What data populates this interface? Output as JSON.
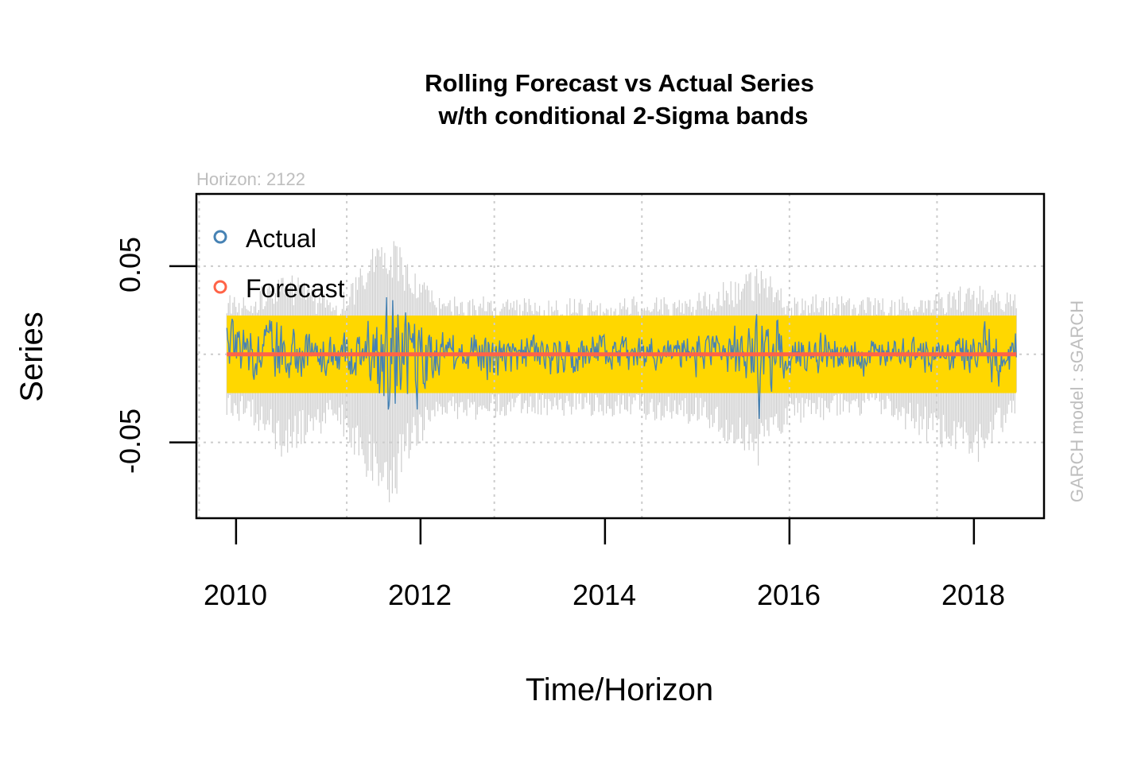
{
  "chart_data": {
    "type": "line",
    "title": "Rolling Forecast vs Actual Series",
    "subtitle": "w/th conditional 2-Sigma bands",
    "xlabel": "Time/Horizon",
    "ylabel": "Series",
    "horizon_note": "Horizon: 2122",
    "model_note": "GARCH model :  sGARCH",
    "xlim": [
      2009.57,
      2018.76
    ],
    "ylim": [
      -0.093,
      0.091
    ],
    "x_ticks": [
      2010,
      2012,
      2014,
      2016,
      2018
    ],
    "x_tick_labels": [
      "2010",
      "2012",
      "2014",
      "2016",
      "2018"
    ],
    "y_ticks": [
      -0.05,
      0.05
    ],
    "y_tick_labels": [
      "-0.05",
      "0.05"
    ],
    "x_grid": [
      2009.6,
      2011.2,
      2012.8,
      2014.4,
      2016.0,
      2017.6
    ],
    "y_grid": [
      -0.05,
      0.0,
      0.05
    ],
    "grid": true,
    "legend_position": "top-left",
    "x_range": [
      2009.9,
      2018.46
    ],
    "colors": {
      "actual": "#4682b4",
      "forecast": "#ff6347",
      "band_inner": "#ffd700",
      "band_outer": "#cccccc",
      "grid": "#cccccc",
      "note": "#bebebe"
    },
    "series": [
      {
        "name": "Actual",
        "role": "actual",
        "color": "#4682b4",
        "x": [
          2009.9,
          2010.08,
          2010.25,
          2010.45,
          2010.7,
          2011.0,
          2011.3,
          2011.58,
          2011.65,
          2011.8,
          2011.95,
          2012.3,
          2012.7,
          2013.0,
          2013.5,
          2013.95,
          2014.4,
          2014.8,
          2015.2,
          2015.6,
          2015.68,
          2015.95,
          2016.5,
          2017.0,
          2017.5,
          2018.0,
          2018.1,
          2018.46
        ],
        "amplitude": [
          0.018,
          0.016,
          0.02,
          0.02,
          0.016,
          0.012,
          0.014,
          0.03,
          0.06,
          0.04,
          0.03,
          0.016,
          0.014,
          0.013,
          0.012,
          0.013,
          0.012,
          0.012,
          0.013,
          0.018,
          0.035,
          0.016,
          0.016,
          0.01,
          0.011,
          0.012,
          0.02,
          0.016
        ]
      },
      {
        "name": "Forecast",
        "role": "forecast",
        "color": "#ff6347",
        "x": [
          2009.9,
          2018.46
        ],
        "y": [
          0.0,
          0.0
        ]
      }
    ],
    "bands": [
      {
        "role": "sigma_2_inner",
        "color": "#ffd700",
        "x": [
          2009.9,
          2018.46
        ],
        "upper": [
          0.022,
          0.022
        ],
        "lower": [
          -0.022,
          -0.022
        ]
      },
      {
        "role": "observation_spread_outer",
        "color": "#cccccc",
        "x": [
          2009.9,
          2010.3,
          2010.5,
          2011.1,
          2011.6,
          2011.7,
          2011.9,
          2012.2,
          2013.0,
          2014.0,
          2015.0,
          2015.7,
          2016.0,
          2017.0,
          2018.0,
          2018.46
        ],
        "upper": [
          0.035,
          0.04,
          0.05,
          0.03,
          0.07,
          0.065,
          0.055,
          0.035,
          0.032,
          0.032,
          0.035,
          0.05,
          0.035,
          0.032,
          0.04,
          0.035
        ],
        "lower": [
          -0.035,
          -0.045,
          -0.06,
          -0.04,
          -0.09,
          -0.085,
          -0.06,
          -0.04,
          -0.035,
          -0.035,
          -0.04,
          -0.065,
          -0.04,
          -0.035,
          -0.065,
          -0.035
        ]
      }
    ]
  }
}
